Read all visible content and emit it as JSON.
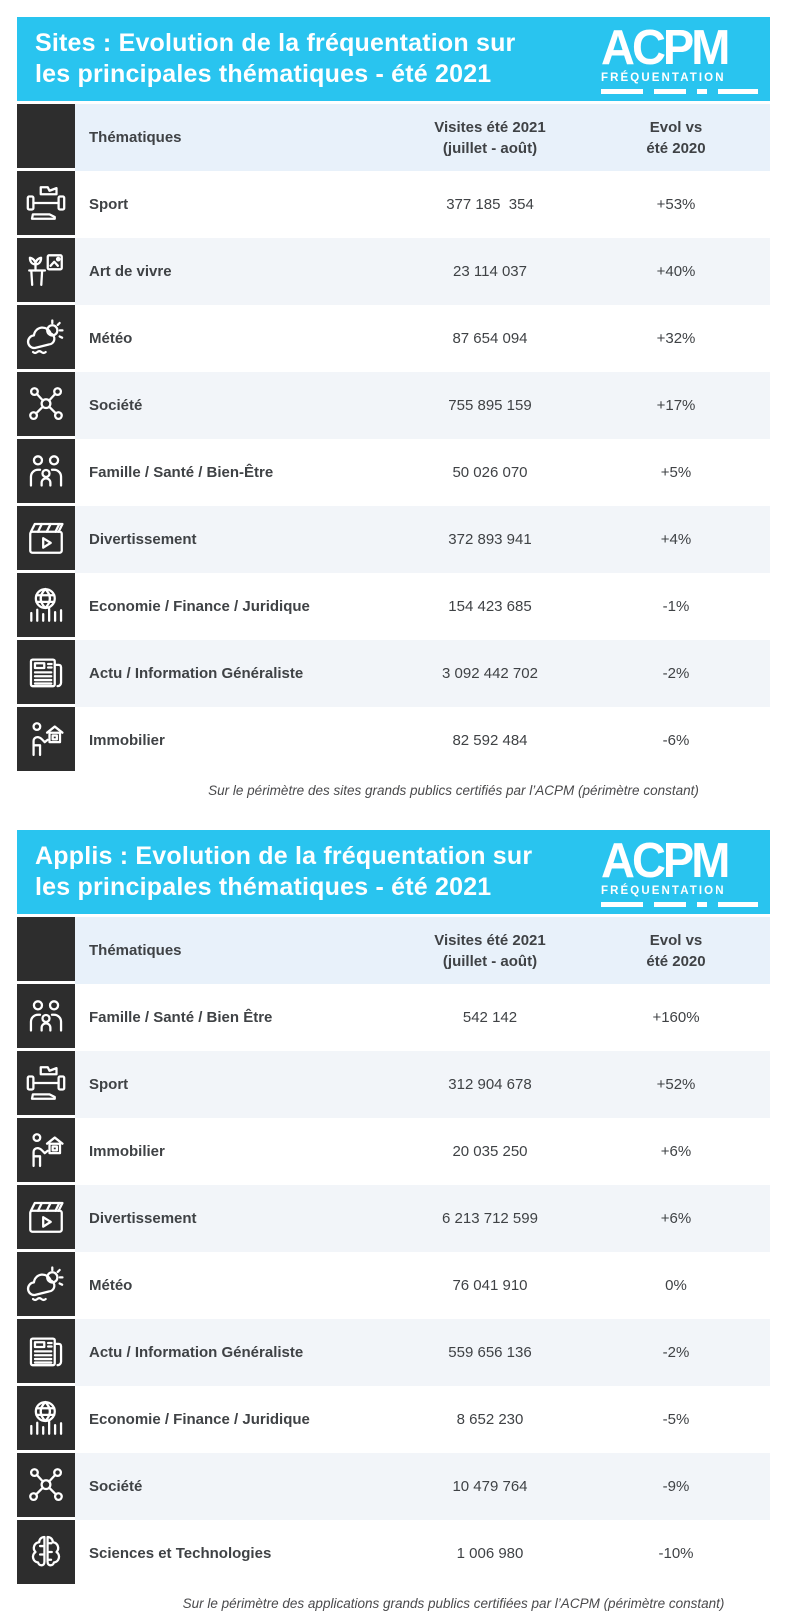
{
  "colors": {
    "accent_cyan": "#29C4EF",
    "icon_strip_black": "#2D2D2D",
    "thead_bg": "#E8F1FA",
    "row_alt_bg": "#F2F5F9",
    "text_dark": "#3F4245"
  },
  "tables": [
    {
      "title_line1": "Sites : Evolution de la fréquentation sur",
      "title_line2": "les principales thématiques - été 2021",
      "logo": {
        "text": "ACPM",
        "subtext": "FRÉQUENTATION"
      },
      "columns": {
        "thematic": "Thématiques",
        "visits_line1": "Visites été 2021",
        "visits_line2": "(juillet - août)",
        "evol_line1": "Evol vs",
        "evol_line2": "été 2020"
      },
      "rows": [
        {
          "icon": "sport-icon",
          "label": "Sport",
          "visits": "377 185  354",
          "evol": "+53%"
        },
        {
          "icon": "art-de-vivre-icon",
          "label": "Art de vivre",
          "visits": "23 114 037",
          "evol": "+40%"
        },
        {
          "icon": "meteo-icon",
          "label": "Météo",
          "visits": "87 654 094",
          "evol": "+32%"
        },
        {
          "icon": "societe-icon",
          "label": "Société",
          "visits": "755 895 159",
          "evol": "+17%"
        },
        {
          "icon": "famille-icon",
          "label": "Famille / Santé / Bien-Être",
          "visits": "50 026 070",
          "evol": "+5%"
        },
        {
          "icon": "divertissement-icon",
          "label": "Divertissement",
          "visits": "372 893 941",
          "evol": "+4%"
        },
        {
          "icon": "economie-icon",
          "label": "Economie / Finance / Juridique",
          "visits": "154 423 685",
          "evol": "-1%"
        },
        {
          "icon": "actu-icon",
          "label": "Actu / Information Généraliste",
          "visits": "3 092 442 702",
          "evol": "-2%"
        },
        {
          "icon": "immobilier-icon",
          "label": "Immobilier",
          "visits": "82 592 484",
          "evol": "-6%"
        }
      ],
      "footnote": "Sur le périmètre des sites grands publics certifiés par l’ACPM (périmètre constant)"
    },
    {
      "title_line1": "Applis : Evolution de la fréquentation sur",
      "title_line2": "les principales thématiques - été 2021",
      "logo": {
        "text": "ACPM",
        "subtext": "FRÉQUENTATION"
      },
      "columns": {
        "thematic": "Thématiques",
        "visits_line1": "Visites été 2021",
        "visits_line2": "(juillet - août)",
        "evol_line1": "Evol vs",
        "evol_line2": "été 2020"
      },
      "rows": [
        {
          "icon": "famille-icon",
          "label": "Famille / Santé / Bien Être",
          "visits": "542 142",
          "evol": "+160%"
        },
        {
          "icon": "sport-icon",
          "label": "Sport",
          "visits": "312 904 678",
          "evol": "+52%"
        },
        {
          "icon": "immobilier-icon",
          "label": "Immobilier",
          "visits": "20 035 250",
          "evol": "+6%"
        },
        {
          "icon": "divertissement-icon",
          "label": "Divertissement",
          "visits": "6 213 712 599",
          "evol": "+6%"
        },
        {
          "icon": "meteo-icon",
          "label": "Météo",
          "visits": "76 041 910",
          "evol": "0%"
        },
        {
          "icon": "actu-icon",
          "label": "Actu / Information Généraliste",
          "visits": "559 656 136",
          "evol": "-2%"
        },
        {
          "icon": "economie-icon",
          "label": "Economie / Finance / Juridique",
          "visits": "8 652 230",
          "evol": "-5%"
        },
        {
          "icon": "societe-icon",
          "label": "Société",
          "visits": "10 479 764",
          "evol": "-9%"
        },
        {
          "icon": "sciences-icon",
          "label": "Sciences et Technologies",
          "visits": "1 006 980",
          "evol": "-10%"
        }
      ],
      "footnote": "Sur le périmètre des applications grands publics certifiées par l’ACPM (périmètre constant)"
    }
  ],
  "chart_data": [
    {
      "type": "table",
      "title": "Sites : Evolution de la fréquentation sur les principales thématiques - été 2021",
      "columns": [
        "Thématiques",
        "Visites été 2021 (juillet - août)",
        "Evol vs été 2020"
      ],
      "rows": [
        [
          "Sport",
          377185354,
          "+53%"
        ],
        [
          "Art de vivre",
          23114037,
          "+40%"
        ],
        [
          "Météo",
          87654094,
          "+32%"
        ],
        [
          "Société",
          755895159,
          "+17%"
        ],
        [
          "Famille / Santé / Bien-Être",
          50026070,
          "+5%"
        ],
        [
          "Divertissement",
          372893941,
          "+4%"
        ],
        [
          "Economie / Finance / Juridique",
          154423685,
          "-1%"
        ],
        [
          "Actu / Information Généraliste",
          3092442702,
          "-2%"
        ],
        [
          "Immobilier",
          82592484,
          "-6%"
        ]
      ],
      "footnote": "Sur le périmètre des sites grands publics certifiés par l’ACPM (périmètre constant)"
    },
    {
      "type": "table",
      "title": "Applis : Evolution de la fréquentation sur les principales thématiques - été 2021",
      "columns": [
        "Thématiques",
        "Visites été 2021 (juillet - août)",
        "Evol vs été 2020"
      ],
      "rows": [
        [
          "Famille / Santé / Bien Être",
          542142,
          "+160%"
        ],
        [
          "Sport",
          312904678,
          "+52%"
        ],
        [
          "Immobilier",
          20035250,
          "+6%"
        ],
        [
          "Divertissement",
          6213712599,
          "+6%"
        ],
        [
          "Météo",
          76041910,
          "0%"
        ],
        [
          "Actu / Information Généraliste",
          559656136,
          "-2%"
        ],
        [
          "Economie / Finance / Juridique",
          8652230,
          "-5%"
        ],
        [
          "Société",
          10479764,
          "-9%"
        ],
        [
          "Sciences et Technologies",
          1006980,
          "-10%"
        ]
      ],
      "footnote": "Sur le périmètre des applications grands publics certifiées par l’ACPM (périmètre constant)"
    }
  ]
}
